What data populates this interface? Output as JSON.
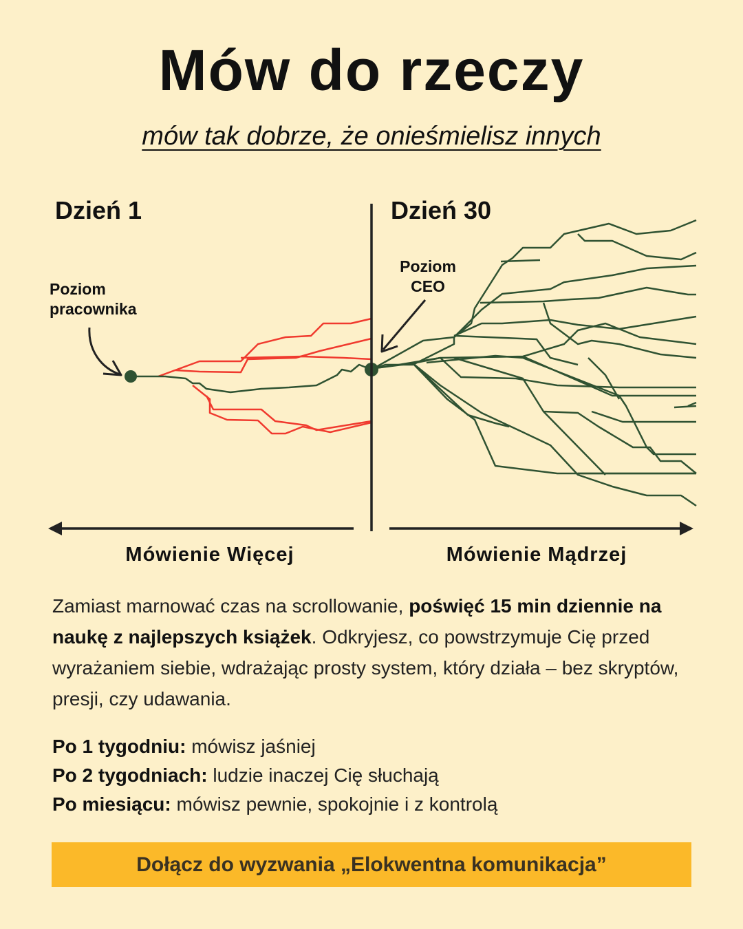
{
  "header": {
    "title": "Mów do rzeczy",
    "subtitle": "mów tak dobrze, że onieśmielisz innych"
  },
  "diagram": {
    "left_label": "Dzień 1",
    "right_label": "Dzień 30",
    "left_point_label": [
      "Poziom",
      "pracownika"
    ],
    "right_point_label": [
      "Poziom",
      "CEO"
    ],
    "left_axis_label": "Mówienie Więcej",
    "right_axis_label": "Mówienie Mądrzej",
    "colors": {
      "red_paths": "#f03a2e",
      "green_paths": "#2f5232",
      "axis": "#222222"
    }
  },
  "body": {
    "p1_a": "Zamiast marnować czas na scrollowanie, ",
    "p1_b": "poświęć 15 min dziennie na naukę z najlepszych książek",
    "p1_c": ". Odkryjesz, co powstrzymuje Cię przed wyrażaniem siebie, wdrażając prosty system, który działa – bez skryptów, presji, czy udawania."
  },
  "milestones": [
    {
      "label": "Po 1 tygodniu:",
      "text": " mówisz jaśniej"
    },
    {
      "label": "Po 2 tygodniach:",
      "text": " ludzie inaczej Cię słuchają"
    },
    {
      "label": "Po miesiącu:",
      "text": " mówisz pewnie, spokojnie i z kontrolą"
    }
  ],
  "cta": {
    "label": "Dołącz do wyzwania „Elokwentna komunikacja”",
    "color": "#fbb929"
  }
}
